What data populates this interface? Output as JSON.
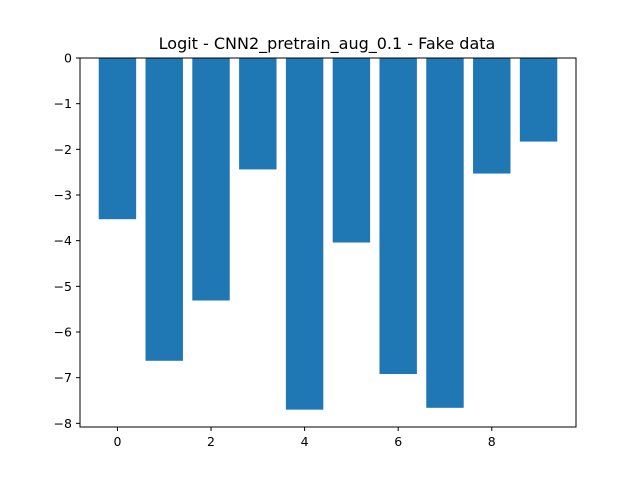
{
  "chart_data": {
    "type": "bar",
    "title": "Logit - CNN2_pretrain_aug_0.1 - Fake data",
    "xlabel": "",
    "ylabel": "",
    "x": [
      0,
      1,
      2,
      3,
      4,
      5,
      6,
      7,
      8,
      9
    ],
    "values": [
      -3.53,
      -6.63,
      -5.31,
      -2.44,
      -7.7,
      -4.04,
      -6.92,
      -7.66,
      -2.53,
      -1.83
    ],
    "xlim": [
      -0.8,
      9.8
    ],
    "ylim": [
      -8.08,
      0
    ],
    "xticks": [
      0,
      2,
      4,
      6,
      8
    ],
    "yticks": [
      0,
      -1,
      -2,
      -3,
      -4,
      -5,
      -6,
      -7,
      -8
    ],
    "bar_color": "#1f77b4",
    "grid": false,
    "legend": "none"
  }
}
